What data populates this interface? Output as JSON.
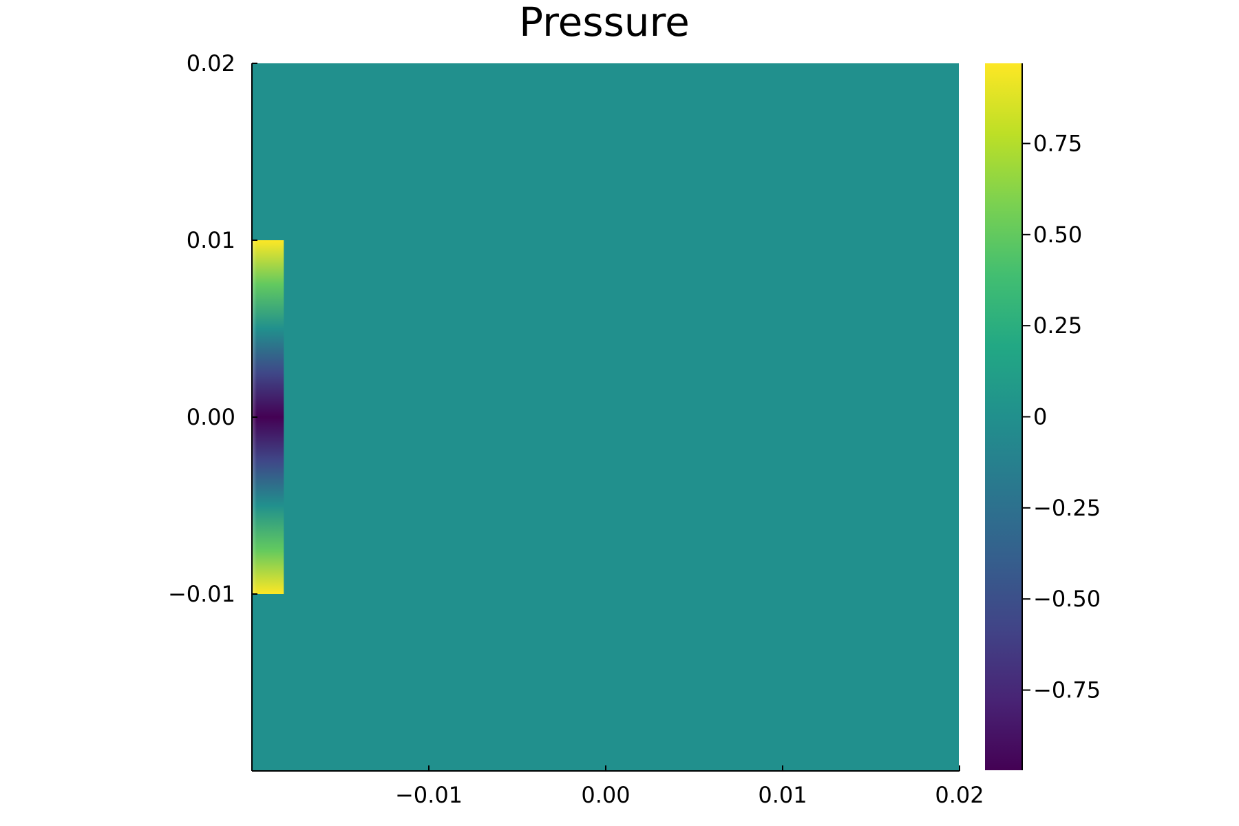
{
  "chart_data": {
    "type": "heatmap",
    "title": "Pressure",
    "xlabel": "",
    "ylabel": "",
    "xlim": [
      -0.02,
      0.02
    ],
    "ylim": [
      -0.02,
      0.02
    ],
    "xticks": [
      {
        "value": -0.01,
        "label": "−0.01"
      },
      {
        "value": 0.0,
        "label": "0.00"
      },
      {
        "value": 0.01,
        "label": "0.01"
      },
      {
        "value": 0.02,
        "label": "0.02"
      }
    ],
    "yticks": [
      {
        "value": -0.01,
        "label": "−0.01"
      },
      {
        "value": 0.0,
        "label": "0.00"
      },
      {
        "value": 0.01,
        "label": "0.01"
      },
      {
        "value": 0.02,
        "label": "0.02"
      }
    ],
    "colormap": "viridis",
    "colorbar": {
      "range": [
        -0.97,
        0.97
      ],
      "ticks": [
        {
          "value": 0.75,
          "label": "0.75"
        },
        {
          "value": 0.5,
          "label": "0.50"
        },
        {
          "value": 0.25,
          "label": "0.25"
        },
        {
          "value": 0.0,
          "label": "0"
        },
        {
          "value": -0.25,
          "label": "−0.25"
        },
        {
          "value": -0.5,
          "label": "−0.50"
        },
        {
          "value": -0.75,
          "label": "−0.75"
        }
      ]
    },
    "background_value": 0.0,
    "source_region": {
      "x_range": [
        -0.02,
        -0.0182
      ],
      "y_range": [
        -0.01,
        0.01
      ]
    },
    "source_profile": [
      {
        "y": 0.01,
        "value": 0.97
      },
      {
        "y": 0.0075,
        "value": 0.5
      },
      {
        "y": 0.005,
        "value": 0.0
      },
      {
        "y": 0.0025,
        "value": -0.55
      },
      {
        "y": 0.0,
        "value": -0.97
      },
      {
        "y": -0.0025,
        "value": -0.55
      },
      {
        "y": -0.005,
        "value": 0.0
      },
      {
        "y": -0.0075,
        "value": 0.5
      },
      {
        "y": -0.01,
        "value": 0.97
      }
    ],
    "grid": false,
    "legend": "none"
  }
}
